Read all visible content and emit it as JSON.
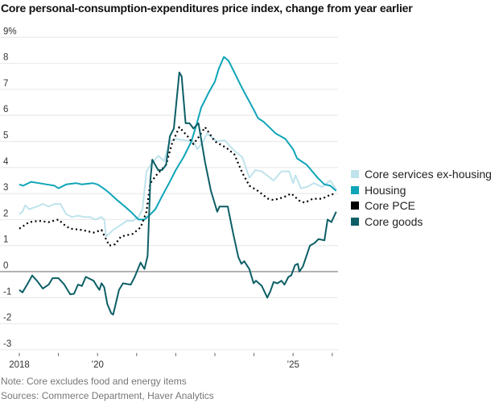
{
  "title": "Core personal-consumption-expenditures price index, change from year earlier",
  "note": "Note: Core excludes food and energy items",
  "sources": "Sources: Commerce Department, Haver Analytics",
  "chart_data": {
    "type": "line",
    "title": "Core personal-consumption-expenditures price index, change from year earlier",
    "xlabel": "",
    "ylabel": "",
    "xlim": [
      2018,
      2026.1
    ],
    "ylim": [
      -3,
      9
    ],
    "grid": true,
    "legend_position": "right",
    "y_ticks": [
      {
        "value": 9,
        "label": "9%"
      },
      {
        "value": 8,
        "label": "8"
      },
      {
        "value": 7,
        "label": "7"
      },
      {
        "value": 6,
        "label": "6"
      },
      {
        "value": 5,
        "label": "5"
      },
      {
        "value": 4,
        "label": "4"
      },
      {
        "value": 3,
        "label": "3"
      },
      {
        "value": 2,
        "label": "2"
      },
      {
        "value": 1,
        "label": "1"
      },
      {
        "value": 0,
        "label": "0"
      },
      {
        "value": -1,
        "label": "-1"
      },
      {
        "value": -2,
        "label": "-2"
      },
      {
        "value": -3,
        "label": "-3"
      }
    ],
    "x_ticks": [
      2018,
      2019,
      2020,
      2021,
      2022,
      2023,
      2024,
      2025,
      2026
    ],
    "x_tick_labels": [
      {
        "value": 2018,
        "label": "2018"
      },
      {
        "value": 2020,
        "label": "’20"
      },
      {
        "value": 2025,
        "label": "’25"
      }
    ],
    "series": [
      {
        "name": "Core services ex-housing",
        "color": "#bfe3ec",
        "style": "solid",
        "points": [
          [
            2018.0,
            2.2
          ],
          [
            2018.08,
            2.3
          ],
          [
            2018.15,
            2.55
          ],
          [
            2018.25,
            2.4
          ],
          [
            2018.45,
            2.5
          ],
          [
            2018.6,
            2.6
          ],
          [
            2018.75,
            2.5
          ],
          [
            2018.9,
            2.6
          ],
          [
            2019.05,
            2.6
          ],
          [
            2019.2,
            2.2
          ],
          [
            2019.35,
            2.1
          ],
          [
            2019.5,
            2.15
          ],
          [
            2019.65,
            2.1
          ],
          [
            2019.8,
            2.1
          ],
          [
            2019.95,
            2.0
          ],
          [
            2020.1,
            2.1
          ],
          [
            2020.17,
            2.0
          ],
          [
            2020.22,
            1.35
          ],
          [
            2020.4,
            1.6
          ],
          [
            2020.6,
            1.8
          ],
          [
            2020.75,
            1.95
          ],
          [
            2020.9,
            1.95
          ],
          [
            2021.05,
            2.1
          ],
          [
            2021.15,
            2.4
          ],
          [
            2021.25,
            3.85
          ],
          [
            2021.4,
            4.2
          ],
          [
            2021.56,
            4.45
          ],
          [
            2021.7,
            4.25
          ],
          [
            2021.85,
            5.0
          ],
          [
            2022.0,
            5.1
          ],
          [
            2022.2,
            5.05
          ],
          [
            2022.45,
            5.0
          ],
          [
            2022.55,
            4.7
          ],
          [
            2022.7,
            5.0
          ],
          [
            2022.8,
            5.3
          ],
          [
            2023.06,
            5.0
          ],
          [
            2023.25,
            5.05
          ],
          [
            2023.4,
            4.8
          ],
          [
            2023.53,
            4.6
          ],
          [
            2023.7,
            4.4
          ],
          [
            2023.88,
            3.6
          ],
          [
            2024.03,
            3.9
          ],
          [
            2024.2,
            3.85
          ],
          [
            2024.5,
            3.5
          ],
          [
            2024.7,
            3.85
          ],
          [
            2024.9,
            3.85
          ],
          [
            2025.0,
            3.4
          ],
          [
            2025.06,
            3.7
          ],
          [
            2025.2,
            3.2
          ],
          [
            2025.35,
            3.25
          ],
          [
            2025.53,
            3.4
          ],
          [
            2025.74,
            3.25
          ],
          [
            2025.95,
            3.5
          ],
          [
            2026.1,
            3.15
          ]
        ]
      },
      {
        "name": "Housing",
        "color": "#0ea5b8",
        "style": "solid",
        "points": [
          [
            2018.0,
            3.35
          ],
          [
            2018.1,
            3.3
          ],
          [
            2018.3,
            3.45
          ],
          [
            2018.5,
            3.4
          ],
          [
            2018.7,
            3.35
          ],
          [
            2018.9,
            3.3
          ],
          [
            2019.0,
            3.2
          ],
          [
            2019.2,
            3.35
          ],
          [
            2019.45,
            3.4
          ],
          [
            2019.6,
            3.35
          ],
          [
            2019.87,
            3.4
          ],
          [
            2020.0,
            3.35
          ],
          [
            2020.15,
            3.2
          ],
          [
            2020.28,
            3.05
          ],
          [
            2020.5,
            2.75
          ],
          [
            2020.7,
            2.5
          ],
          [
            2020.85,
            2.3
          ],
          [
            2021.05,
            2.0
          ],
          [
            2021.2,
            2.0
          ],
          [
            2021.35,
            2.2
          ],
          [
            2021.48,
            2.4
          ],
          [
            2021.65,
            2.9
          ],
          [
            2021.83,
            3.4
          ],
          [
            2022.0,
            3.9
          ],
          [
            2022.2,
            4.4
          ],
          [
            2022.4,
            5.0
          ],
          [
            2022.52,
            5.6
          ],
          [
            2022.65,
            6.3
          ],
          [
            2022.85,
            6.9
          ],
          [
            2023.0,
            7.3
          ],
          [
            2023.1,
            7.8
          ],
          [
            2023.23,
            8.25
          ],
          [
            2023.35,
            8.1
          ],
          [
            2023.53,
            7.55
          ],
          [
            2023.68,
            7.1
          ],
          [
            2023.82,
            6.7
          ],
          [
            2024.0,
            6.2
          ],
          [
            2024.1,
            5.9
          ],
          [
            2024.25,
            5.75
          ],
          [
            2024.56,
            5.3
          ],
          [
            2024.8,
            5.1
          ],
          [
            2025.0,
            4.7
          ],
          [
            2025.1,
            4.35
          ],
          [
            2025.35,
            4.1
          ],
          [
            2025.63,
            3.6
          ],
          [
            2025.8,
            3.35
          ],
          [
            2025.95,
            3.3
          ],
          [
            2026.1,
            3.1
          ]
        ]
      },
      {
        "name": "Core PCE",
        "color": "#000000",
        "style": "dotted",
        "points": [
          [
            2018.0,
            1.65
          ],
          [
            2018.1,
            1.75
          ],
          [
            2018.25,
            1.9
          ],
          [
            2018.5,
            1.95
          ],
          [
            2018.75,
            1.9
          ],
          [
            2019.0,
            2.0
          ],
          [
            2019.15,
            1.8
          ],
          [
            2019.3,
            1.65
          ],
          [
            2019.6,
            1.6
          ],
          [
            2019.9,
            1.5
          ],
          [
            2020.1,
            1.6
          ],
          [
            2020.2,
            1.3
          ],
          [
            2020.3,
            1.0
          ],
          [
            2020.45,
            1.05
          ],
          [
            2020.6,
            1.35
          ],
          [
            2020.9,
            1.45
          ],
          [
            2021.1,
            1.7
          ],
          [
            2021.25,
            2.3
          ],
          [
            2021.35,
            3.4
          ],
          [
            2021.5,
            3.7
          ],
          [
            2021.75,
            4.1
          ],
          [
            2021.9,
            4.9
          ],
          [
            2022.09,
            5.55
          ],
          [
            2022.3,
            5.2
          ],
          [
            2022.45,
            4.9
          ],
          [
            2022.6,
            5.2
          ],
          [
            2022.75,
            5.55
          ],
          [
            2023.0,
            5.0
          ],
          [
            2023.3,
            4.75
          ],
          [
            2023.5,
            4.5
          ],
          [
            2023.7,
            3.8
          ],
          [
            2023.88,
            3.3
          ],
          [
            2024.1,
            3.1
          ],
          [
            2024.36,
            2.8
          ],
          [
            2024.5,
            2.75
          ],
          [
            2024.75,
            2.85
          ],
          [
            2024.95,
            3.0
          ],
          [
            2025.18,
            2.7
          ],
          [
            2025.3,
            2.65
          ],
          [
            2025.5,
            2.8
          ],
          [
            2025.74,
            2.8
          ],
          [
            2025.95,
            2.95
          ],
          [
            2026.1,
            3.0
          ]
        ]
      },
      {
        "name": "Core goods",
        "color": "#0c5f66",
        "style": "solid",
        "points": [
          [
            2018.0,
            -0.7
          ],
          [
            2018.08,
            -0.8
          ],
          [
            2018.2,
            -0.5
          ],
          [
            2018.33,
            -0.15
          ],
          [
            2018.45,
            -0.35
          ],
          [
            2018.6,
            -0.65
          ],
          [
            2018.75,
            -0.5
          ],
          [
            2018.85,
            -0.25
          ],
          [
            2019.0,
            -0.25
          ],
          [
            2019.15,
            -0.5
          ],
          [
            2019.3,
            -0.87
          ],
          [
            2019.4,
            -0.85
          ],
          [
            2019.5,
            -0.5
          ],
          [
            2019.6,
            -0.55
          ],
          [
            2019.7,
            -0.2
          ],
          [
            2019.9,
            -0.35
          ],
          [
            2020.0,
            -0.6
          ],
          [
            2020.05,
            -0.7
          ],
          [
            2020.1,
            -0.45
          ],
          [
            2020.17,
            -0.6
          ],
          [
            2020.25,
            -1.25
          ],
          [
            2020.35,
            -1.6
          ],
          [
            2020.4,
            -1.65
          ],
          [
            2020.55,
            -0.7
          ],
          [
            2020.65,
            -0.45
          ],
          [
            2020.85,
            -0.5
          ],
          [
            2020.95,
            -0.2
          ],
          [
            2021.1,
            0.35
          ],
          [
            2021.2,
            0.1
          ],
          [
            2021.28,
            0.6
          ],
          [
            2021.35,
            3.5
          ],
          [
            2021.4,
            4.3
          ],
          [
            2021.55,
            3.9
          ],
          [
            2021.65,
            3.9
          ],
          [
            2021.75,
            4.1
          ],
          [
            2021.85,
            5.2
          ],
          [
            2021.95,
            5.5
          ],
          [
            2022.09,
            7.65
          ],
          [
            2022.15,
            7.5
          ],
          [
            2022.25,
            5.7
          ],
          [
            2022.35,
            5.7
          ],
          [
            2022.45,
            5.5
          ],
          [
            2022.58,
            5.7
          ],
          [
            2022.75,
            4.2
          ],
          [
            2022.9,
            3.1
          ],
          [
            2023.06,
            2.3
          ],
          [
            2023.12,
            2.5
          ],
          [
            2023.33,
            2.5
          ],
          [
            2023.47,
            1.45
          ],
          [
            2023.6,
            0.55
          ],
          [
            2023.68,
            0.3
          ],
          [
            2023.75,
            0.4
          ],
          [
            2023.88,
            0.1
          ],
          [
            2023.99,
            -0.45
          ],
          [
            2024.05,
            -0.35
          ],
          [
            2024.2,
            -0.55
          ],
          [
            2024.34,
            -1.0
          ],
          [
            2024.42,
            -0.75
          ],
          [
            2024.5,
            -0.4
          ],
          [
            2024.6,
            -0.45
          ],
          [
            2024.7,
            -0.35
          ],
          [
            2024.78,
            -0.5
          ],
          [
            2024.88,
            -0.2
          ],
          [
            2024.95,
            -0.15
          ],
          [
            2025.05,
            0.25
          ],
          [
            2025.12,
            0.3
          ],
          [
            2025.16,
            0.0
          ],
          [
            2025.25,
            0.2
          ],
          [
            2025.43,
            1.0
          ],
          [
            2025.55,
            1.1
          ],
          [
            2025.65,
            1.25
          ],
          [
            2025.8,
            1.2
          ],
          [
            2025.88,
            2.0
          ],
          [
            2025.98,
            1.9
          ],
          [
            2026.1,
            2.3
          ]
        ]
      }
    ]
  }
}
